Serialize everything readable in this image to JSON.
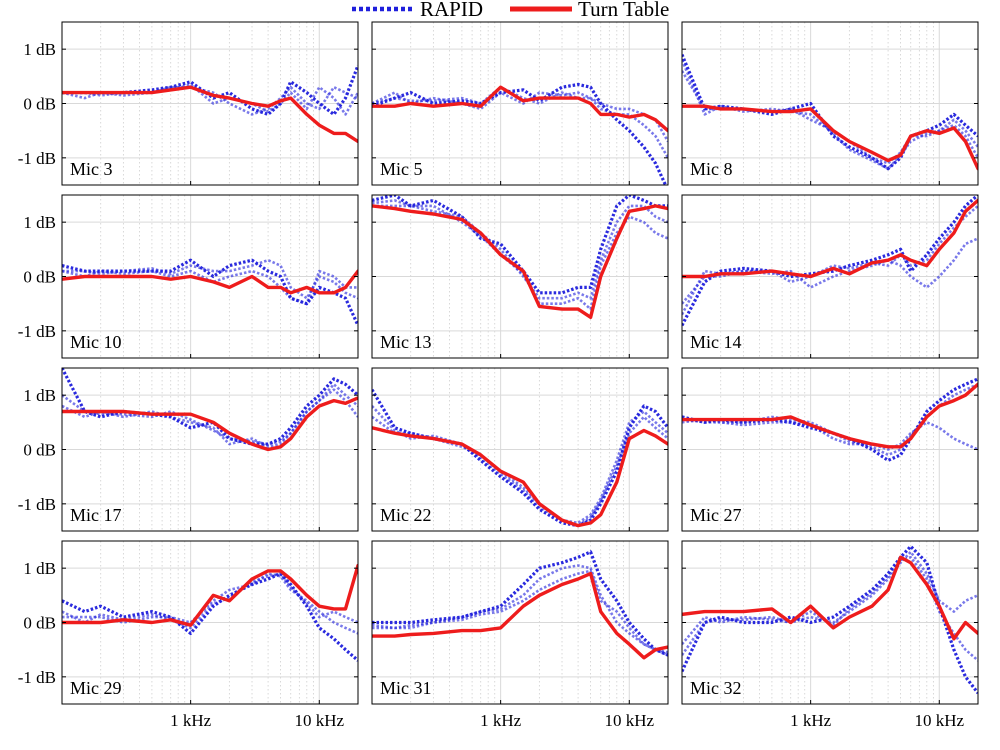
{
  "chart_data": {
    "type": "line",
    "layout": "4x3 grid of panels",
    "x_scale": "log",
    "x_unit": "Hz",
    "xlim": [
      100,
      20000
    ],
    "ylim": [
      -1.5,
      1.5
    ],
    "y_ticks": [
      1,
      0,
      -1
    ],
    "y_tick_labels": [
      "1 dB",
      "0 dB",
      "-1 dB"
    ],
    "x_ticks": [
      1000,
      10000
    ],
    "x_tick_labels": [
      "1 kHz",
      "10 kHz"
    ],
    "grid": true,
    "legend": {
      "placement": "top-center",
      "entries": [
        {
          "name": "RAPID",
          "color": "#1f1fdc",
          "style": "dotted"
        },
        {
          "name": "Turn Table",
          "color": "#ee1c1c",
          "style": "solid"
        }
      ]
    },
    "colors": {
      "rapid": "#1f1fdc",
      "turntable": "#ee1c1c"
    },
    "frequencies_hz": [
      100,
      150,
      200,
      300,
      500,
      700,
      1000,
      1500,
      2000,
      3000,
      4000,
      5000,
      6000,
      8000,
      10000,
      13000,
      16000,
      20000
    ],
    "panels": [
      {
        "label": "Mic 3",
        "turn_table": [
          0.2,
          0.2,
          0.2,
          0.2,
          0.2,
          0.25,
          0.3,
          0.15,
          0.1,
          0.0,
          -0.05,
          0.05,
          0.1,
          -0.2,
          -0.4,
          -0.55,
          -0.55,
          -0.7
        ],
        "rapid": [
          [
            0.2,
            0.2,
            0.2,
            0.2,
            0.25,
            0.3,
            0.4,
            0.1,
            0.2,
            -0.1,
            -0.2,
            0.0,
            0.4,
            0.2,
            0.0,
            -0.2,
            0.1,
            0.7
          ],
          [
            0.2,
            0.1,
            0.2,
            0.15,
            0.2,
            0.3,
            0.3,
            0.2,
            0.0,
            -0.2,
            -0.1,
            0.1,
            0.3,
            0.0,
            -0.1,
            0.3,
            0.2,
            0.1
          ],
          [
            0.2,
            0.2,
            0.15,
            0.2,
            0.2,
            0.25,
            0.35,
            0.0,
            0.1,
            0.0,
            -0.15,
            0.0,
            0.2,
            -0.1,
            0.3,
            0.1,
            -0.2,
            0.2
          ]
        ]
      },
      {
        "label": "Mic 5",
        "turn_table": [
          -0.05,
          -0.05,
          0.0,
          -0.05,
          0.0,
          -0.05,
          0.3,
          0.05,
          0.1,
          0.1,
          0.1,
          0.0,
          -0.2,
          -0.2,
          -0.25,
          -0.2,
          -0.3,
          -0.5
        ],
        "rapid": [
          [
            -0.05,
            0.1,
            0.2,
            0.0,
            0.05,
            0.0,
            0.2,
            0.25,
            0.05,
            0.3,
            0.35,
            0.3,
            0.0,
            -0.3,
            -0.5,
            -0.8,
            -1.1,
            -1.6
          ],
          [
            0.0,
            0.2,
            0.0,
            0.1,
            0.0,
            -0.1,
            0.2,
            0.0,
            0.2,
            0.15,
            0.2,
            0.1,
            0.0,
            -0.1,
            -0.1,
            -0.2,
            -0.3,
            -0.7
          ],
          [
            0.0,
            0.1,
            0.05,
            0.05,
            0.1,
            0.0,
            0.3,
            0.1,
            0.0,
            0.2,
            0.1,
            0.1,
            -0.1,
            -0.2,
            -0.2,
            -0.4,
            -0.6,
            -1.0
          ]
        ]
      },
      {
        "label": "Mic 8",
        "turn_table": [
          -0.05,
          -0.05,
          -0.1,
          -0.1,
          -0.15,
          -0.15,
          -0.1,
          -0.5,
          -0.7,
          -0.9,
          -1.05,
          -0.95,
          -0.6,
          -0.5,
          -0.55,
          -0.45,
          -0.7,
          -1.2
        ],
        "rapid": [
          [
            0.9,
            -0.1,
            -0.05,
            -0.1,
            -0.2,
            -0.1,
            0.0,
            -0.6,
            -0.8,
            -1.0,
            -1.2,
            -1.0,
            -0.6,
            -0.5,
            -0.4,
            -0.2,
            -0.4,
            -0.6
          ],
          [
            0.6,
            -0.1,
            -0.1,
            -0.1,
            -0.15,
            -0.1,
            -0.3,
            -0.5,
            -0.7,
            -1.0,
            -1.1,
            -0.9,
            -0.6,
            -0.6,
            -0.5,
            -0.3,
            -0.5,
            -0.8
          ],
          [
            0.8,
            -0.2,
            -0.05,
            -0.15,
            -0.1,
            -0.15,
            -0.2,
            -0.55,
            -0.85,
            -1.05,
            -1.2,
            -0.95,
            -0.7,
            -0.55,
            -0.5,
            -0.4,
            -0.6,
            -1.0
          ]
        ]
      },
      {
        "label": "Mic 10",
        "turn_table": [
          -0.05,
          0.0,
          0.0,
          0.0,
          0.0,
          -0.05,
          0.0,
          -0.1,
          -0.2,
          0.0,
          -0.2,
          -0.2,
          -0.3,
          -0.2,
          -0.3,
          -0.3,
          -0.2,
          0.1
        ],
        "rapid": [
          [
            0.2,
            0.1,
            0.1,
            0.1,
            0.1,
            0.1,
            0.3,
            0.0,
            0.2,
            0.3,
            0.1,
            0.0,
            -0.4,
            -0.5,
            -0.2,
            -0.3,
            -0.4,
            -0.9
          ],
          [
            0.1,
            0.1,
            0.05,
            0.1,
            0.15,
            0.05,
            0.2,
            0.1,
            0.1,
            0.2,
            0.3,
            0.2,
            -0.2,
            -0.4,
            0.0,
            -0.1,
            -0.3,
            -0.4
          ],
          [
            0.1,
            0.0,
            0.1,
            0.05,
            0.1,
            0.0,
            0.1,
            -0.1,
            0.0,
            0.1,
            0.0,
            -0.2,
            -0.4,
            -0.5,
            0.1,
            0.0,
            -0.2,
            -0.2
          ]
        ]
      },
      {
        "label": "Mic 13",
        "turn_table": [
          1.3,
          1.25,
          1.2,
          1.15,
          1.05,
          0.8,
          0.4,
          0.1,
          -0.55,
          -0.6,
          -0.6,
          -0.75,
          0.0,
          0.7,
          1.2,
          1.25,
          1.3,
          1.25
        ],
        "rapid": [
          [
            1.4,
            1.5,
            1.3,
            1.4,
            1.1,
            0.7,
            0.6,
            0.1,
            -0.3,
            -0.3,
            -0.2,
            -0.2,
            0.5,
            1.3,
            1.5,
            1.4,
            1.3,
            1.3
          ],
          [
            1.3,
            1.3,
            1.3,
            1.2,
            1.1,
            0.8,
            0.5,
            0.0,
            -0.4,
            -0.4,
            -0.3,
            -0.4,
            0.3,
            1.0,
            1.3,
            1.3,
            1.1,
            1.0
          ],
          [
            1.35,
            1.4,
            1.3,
            1.3,
            1.0,
            0.75,
            0.4,
            0.05,
            -0.5,
            -0.5,
            -0.4,
            -0.6,
            0.2,
            0.8,
            1.1,
            1.0,
            0.8,
            0.7
          ]
        ]
      },
      {
        "label": "Mic 14",
        "turn_table": [
          0.0,
          0.0,
          0.05,
          0.05,
          0.1,
          0.05,
          0.0,
          0.15,
          0.05,
          0.25,
          0.3,
          0.4,
          0.3,
          0.2,
          0.5,
          0.8,
          1.2,
          1.4
        ],
        "rapid": [
          [
            -0.9,
            -0.1,
            0.1,
            0.15,
            0.1,
            0.0,
            0.05,
            0.1,
            0.2,
            0.3,
            0.4,
            0.5,
            0.1,
            0.4,
            0.7,
            1.0,
            1.3,
            1.5
          ],
          [
            -0.5,
            0.0,
            0.0,
            0.1,
            0.05,
            0.1,
            -0.2,
            0.0,
            0.1,
            0.2,
            0.3,
            0.2,
            0.0,
            -0.2,
            0.0,
            0.3,
            0.6,
            0.7
          ],
          [
            -0.7,
            0.1,
            0.05,
            0.1,
            0.1,
            -0.1,
            0.0,
            0.2,
            0.15,
            0.25,
            0.2,
            0.4,
            0.2,
            0.3,
            0.6,
            0.9,
            1.1,
            1.3
          ]
        ]
      },
      {
        "label": "Mic 17",
        "turn_table": [
          0.7,
          0.7,
          0.7,
          0.7,
          0.65,
          0.65,
          0.65,
          0.5,
          0.3,
          0.1,
          0.0,
          0.05,
          0.2,
          0.6,
          0.8,
          0.9,
          0.85,
          0.95
        ],
        "rapid": [
          [
            1.5,
            0.7,
            0.6,
            0.7,
            0.65,
            0.6,
            0.4,
            0.5,
            0.2,
            0.1,
            0.1,
            0.2,
            0.4,
            0.8,
            1.0,
            1.3,
            1.2,
            1.0
          ],
          [
            0.8,
            0.6,
            0.7,
            0.6,
            0.7,
            0.6,
            0.5,
            0.4,
            0.1,
            0.2,
            0.05,
            0.1,
            0.3,
            0.7,
            0.9,
            1.1,
            0.9,
            0.6
          ],
          [
            1.0,
            0.7,
            0.65,
            0.65,
            0.6,
            0.7,
            0.55,
            0.35,
            0.2,
            0.15,
            0.1,
            0.15,
            0.3,
            0.7,
            0.9,
            1.2,
            1.0,
            0.8
          ]
        ]
      },
      {
        "label": "Mic 22",
        "turn_table": [
          0.4,
          0.3,
          0.25,
          0.2,
          0.1,
          -0.1,
          -0.4,
          -0.6,
          -1.0,
          -1.3,
          -1.4,
          -1.35,
          -1.2,
          -0.6,
          0.2,
          0.35,
          0.25,
          0.1
        ],
        "rapid": [
          [
            1.1,
            0.4,
            0.3,
            0.2,
            0.1,
            -0.2,
            -0.5,
            -0.8,
            -1.1,
            -1.35,
            -1.4,
            -1.3,
            -1.0,
            -0.4,
            0.4,
            0.8,
            0.7,
            0.4
          ],
          [
            0.6,
            0.3,
            0.3,
            0.2,
            0.05,
            -0.1,
            -0.4,
            -0.7,
            -1.0,
            -1.3,
            -1.35,
            -1.2,
            -0.9,
            -0.2,
            0.5,
            0.7,
            0.5,
            0.3
          ],
          [
            0.8,
            0.35,
            0.2,
            0.25,
            0.1,
            -0.15,
            -0.45,
            -0.75,
            -1.05,
            -1.3,
            -1.4,
            -1.25,
            -0.95,
            -0.3,
            0.3,
            0.6,
            0.4,
            0.2
          ]
        ]
      },
      {
        "label": "Mic 27",
        "turn_table": [
          0.55,
          0.55,
          0.55,
          0.55,
          0.55,
          0.6,
          0.45,
          0.3,
          0.2,
          0.1,
          0.05,
          0.05,
          0.2,
          0.6,
          0.8,
          0.9,
          1.0,
          1.2
        ],
        "rapid": [
          [
            0.6,
            0.5,
            0.55,
            0.5,
            0.55,
            0.5,
            0.4,
            0.3,
            0.2,
            0.0,
            -0.2,
            -0.1,
            0.2,
            0.7,
            0.9,
            1.1,
            1.2,
            1.3
          ],
          [
            0.5,
            0.55,
            0.5,
            0.45,
            0.5,
            0.5,
            0.45,
            0.2,
            0.1,
            0.1,
            0.0,
            0.1,
            0.3,
            0.5,
            0.4,
            0.2,
            0.1,
            0.0
          ],
          [
            0.55,
            0.5,
            0.5,
            0.5,
            0.6,
            0.55,
            0.5,
            0.3,
            0.15,
            0.05,
            -0.1,
            0.0,
            0.25,
            0.6,
            0.8,
            1.0,
            1.1,
            1.2
          ]
        ]
      },
      {
        "label": "Mic 29",
        "turn_table": [
          0.0,
          0.0,
          0.0,
          0.05,
          0.0,
          0.05,
          -0.05,
          0.5,
          0.4,
          0.8,
          0.95,
          0.95,
          0.8,
          0.5,
          0.3,
          0.25,
          0.25,
          1.05
        ],
        "rapid": [
          [
            0.4,
            0.2,
            0.3,
            0.1,
            0.2,
            0.1,
            -0.2,
            0.3,
            0.5,
            0.7,
            0.8,
            0.9,
            0.7,
            0.3,
            -0.1,
            -0.3,
            -0.5,
            -0.7
          ],
          [
            0.1,
            0.1,
            0.1,
            0.0,
            0.1,
            0.1,
            0.0,
            0.4,
            0.6,
            0.7,
            0.9,
            0.85,
            0.6,
            0.4,
            0.2,
            0.0,
            -0.1,
            -0.2
          ],
          [
            0.2,
            0.0,
            0.15,
            0.05,
            0.15,
            0.05,
            -0.1,
            0.35,
            0.45,
            0.75,
            0.85,
            0.9,
            0.65,
            0.35,
            0.1,
            0.2,
            0.1,
            0.0
          ]
        ]
      },
      {
        "label": "Mic 31",
        "turn_table": [
          -0.25,
          -0.25,
          -0.22,
          -0.2,
          -0.15,
          -0.15,
          -0.1,
          0.3,
          0.5,
          0.7,
          0.8,
          0.9,
          0.2,
          -0.2,
          -0.4,
          -0.65,
          -0.5,
          -0.45
        ],
        "rapid": [
          [
            0.0,
            0.0,
            0.0,
            0.05,
            0.1,
            0.2,
            0.3,
            0.7,
            1.0,
            1.1,
            1.2,
            1.3,
            0.8,
            0.4,
            0.0,
            -0.3,
            -0.5,
            -0.6
          ],
          [
            -0.1,
            -0.1,
            -0.1,
            0.0,
            0.1,
            0.2,
            0.25,
            0.5,
            0.8,
            1.0,
            1.05,
            1.0,
            0.5,
            0.0,
            -0.2,
            -0.4,
            -0.5,
            -0.6
          ],
          [
            -0.05,
            -0.1,
            -0.05,
            0.0,
            0.05,
            0.15,
            0.2,
            0.4,
            0.6,
            0.8,
            0.9,
            0.95,
            0.4,
            0.2,
            -0.1,
            -0.4,
            -0.5,
            -0.55
          ]
        ]
      },
      {
        "label": "Mic 32",
        "turn_table": [
          0.15,
          0.2,
          0.2,
          0.2,
          0.25,
          0.0,
          0.3,
          -0.1,
          0.1,
          0.3,
          0.6,
          1.2,
          1.1,
          0.7,
          0.3,
          -0.3,
          0.0,
          -0.2
        ],
        "rapid": [
          [
            -0.9,
            0.0,
            0.1,
            0.0,
            0.0,
            0.1,
            0.0,
            0.1,
            0.3,
            0.6,
            0.9,
            1.2,
            1.4,
            1.1,
            0.3,
            -0.5,
            -1.0,
            -1.3
          ],
          [
            -0.4,
            0.1,
            0.0,
            0.1,
            0.05,
            0.0,
            0.1,
            0.0,
            0.2,
            0.5,
            0.8,
            1.1,
            1.3,
            0.9,
            0.4,
            0.2,
            0.4,
            0.5
          ],
          [
            -0.6,
            0.0,
            0.05,
            0.05,
            0.1,
            0.0,
            0.2,
            -0.05,
            0.25,
            0.55,
            0.85,
            1.15,
            1.2,
            0.8,
            0.2,
            -0.2,
            -0.5,
            -0.7
          ]
        ]
      }
    ]
  }
}
